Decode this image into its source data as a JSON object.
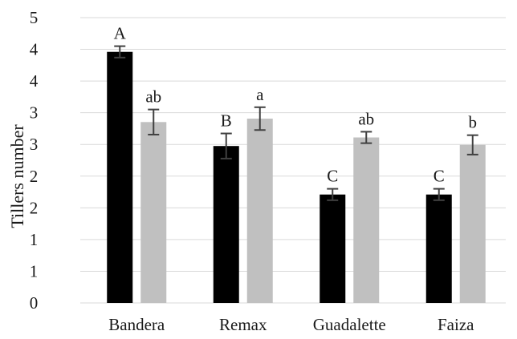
{
  "chart_data": {
    "type": "bar",
    "title": "",
    "xlabel": "",
    "ylabel": "Tillers number",
    "categories": [
      "Bandera",
      "Remax",
      "Guadalette",
      "Faiza"
    ],
    "y_tick_labels": [
      "0",
      "1",
      "1",
      "2",
      "2",
      "3",
      "3",
      "4",
      "4",
      "5"
    ],
    "ylim": [
      0,
      5
    ],
    "grid": true,
    "legend": "none",
    "series": [
      {
        "color": "#000000",
        "values": [
          4.4,
          2.75,
          1.9,
          1.9
        ],
        "errors": [
          0.1,
          0.22,
          0.1,
          0.1
        ],
        "labels": [
          "A",
          "B",
          "C",
          "C"
        ]
      },
      {
        "color": "#c0c0c0",
        "values": [
          3.17,
          3.23,
          2.9,
          2.77
        ],
        "errors": [
          0.22,
          0.2,
          0.1,
          0.17
        ],
        "labels": [
          "ab",
          "a",
          "ab",
          "b"
        ]
      }
    ]
  }
}
